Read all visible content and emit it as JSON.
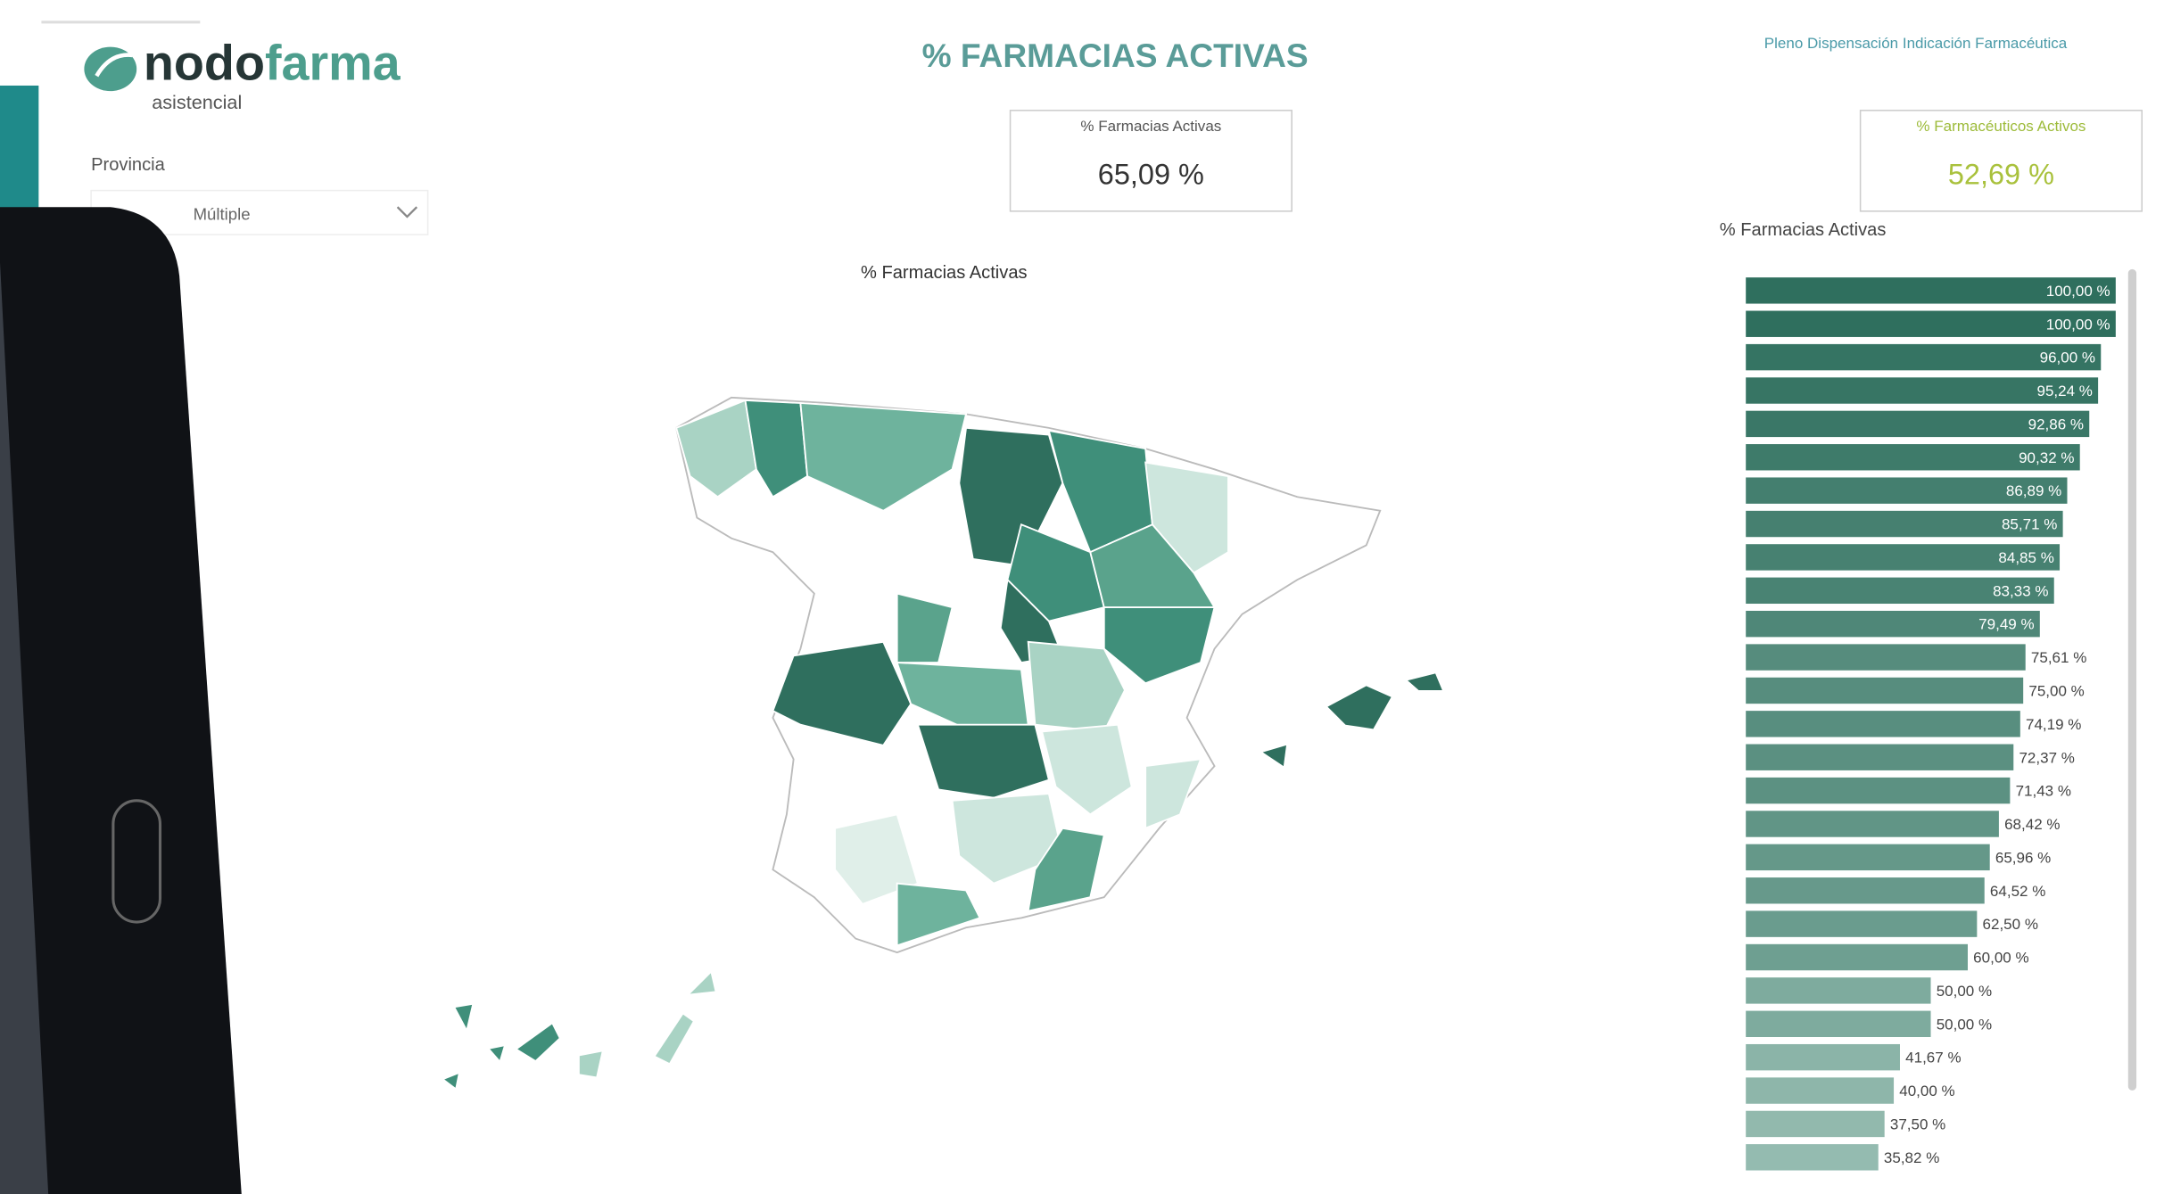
{
  "header": {
    "logo": {
      "part1": "nodo",
      "part2": "farma",
      "subtitle": "asistencial"
    },
    "title": "% FARMACIAS ACTIVAS",
    "link": "Pleno Dispensación Indicación Farmacéutica"
  },
  "filter": {
    "label": "Provincia",
    "value": "Múltiple"
  },
  "cards": [
    {
      "label": "% Farmacias Activas",
      "value": "65,09 %"
    },
    {
      "label": "% Farmacéuticos Activos",
      "value": "52,69 %"
    }
  ],
  "map": {
    "title": "% Farmacias Activas"
  },
  "chart_data": {
    "type": "bar",
    "orientation": "horizontal",
    "title": "% Farmacias Activas",
    "values": [
      100.0,
      100.0,
      96.0,
      95.24,
      92.86,
      90.32,
      86.89,
      85.71,
      84.85,
      83.33,
      79.49,
      75.61,
      75.0,
      74.19,
      72.37,
      71.43,
      68.42,
      65.96,
      64.52,
      62.5,
      60.0,
      50.0,
      50.0,
      41.67,
      40.0,
      37.5,
      35.82
    ],
    "value_labels": [
      "100,00 %",
      "100,00 %",
      "96,00 %",
      "95,24 %",
      "92,86 %",
      "90,32 %",
      "86,89 %",
      "85,71 %",
      "84,85 %",
      "83,33 %",
      "79,49 %",
      "75,61 %",
      "75,00 %",
      "74,19 %",
      "72,37 %",
      "71,43 %",
      "68,42 %",
      "65,96 %",
      "64,52 %",
      "62,50 %",
      "60,00 %",
      "50,00 %",
      "50,00 %",
      "41,67 %",
      "40,00 %",
      "37,50 %",
      "35,82 %"
    ],
    "xlim": [
      0,
      100
    ],
    "color_high": "#2f6f5e",
    "color_low": "#cde6dd"
  }
}
